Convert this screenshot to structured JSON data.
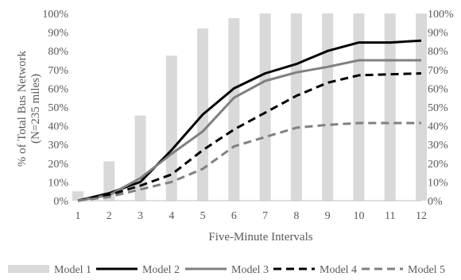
{
  "chart_data": {
    "type": "bar+line",
    "title": "",
    "xlabel": "Five-Minute Intervals",
    "ylabel": "% of Total Bus Network (N=235 miles)",
    "ylabel_lines": [
      "% of Total Bus Network",
      "(N=235 miles)"
    ],
    "x": [
      1,
      2,
      3,
      4,
      5,
      6,
      7,
      8,
      9,
      10,
      11,
      12
    ],
    "x_tick_labels": [
      "1",
      "2",
      "3",
      "4",
      "5",
      "6",
      "7",
      "8",
      "9",
      "10",
      "11",
      "12"
    ],
    "ylim": [
      0,
      100
    ],
    "y_ticks": [
      0,
      10,
      20,
      30,
      40,
      50,
      60,
      70,
      80,
      90,
      100
    ],
    "y_tick_labels": [
      "0%",
      "10%",
      "20%",
      "30%",
      "40%",
      "50%",
      "60%",
      "70%",
      "80%",
      "90%",
      "100%"
    ],
    "secondary_y_ticks": [
      0,
      10,
      20,
      30,
      40,
      50,
      60,
      70,
      80,
      90,
      100
    ],
    "secondary_y_tick_labels": [
      "0%",
      "10%",
      "20%",
      "30%",
      "40%",
      "50%",
      "60%",
      "70%",
      "80%",
      "90%",
      "100%"
    ],
    "grid": false,
    "legend_position": "bottom",
    "series": [
      {
        "name": "Model 1",
        "type": "bar",
        "color": "#d9d9d9",
        "dash": "solid",
        "values": [
          5,
          21,
          45.5,
          77.5,
          92,
          97.5,
          100,
          100,
          100,
          100,
          100,
          100
        ]
      },
      {
        "name": "Model 2",
        "type": "line",
        "color": "#000000",
        "dash": "solid",
        "values": [
          0,
          4,
          10,
          27,
          46,
          60,
          68,
          73,
          80,
          84.5,
          84.5,
          85.5
        ]
      },
      {
        "name": "Model 3",
        "type": "line",
        "color": "#808080",
        "dash": "solid",
        "values": [
          0,
          3,
          12,
          25,
          37,
          55,
          64,
          68.5,
          71.5,
          75,
          75,
          75
        ]
      },
      {
        "name": "Model 4",
        "type": "line",
        "color": "#000000",
        "dash": "dashed",
        "values": [
          0,
          3,
          8,
          14,
          27,
          38,
          47,
          56,
          63,
          67,
          67.5,
          68
        ]
      },
      {
        "name": "Model 5",
        "type": "line",
        "color": "#808080",
        "dash": "dashed",
        "values": [
          0,
          2,
          6,
          10,
          17,
          29,
          34,
          39,
          40.5,
          41.5,
          41.5,
          41.5
        ]
      }
    ]
  }
}
